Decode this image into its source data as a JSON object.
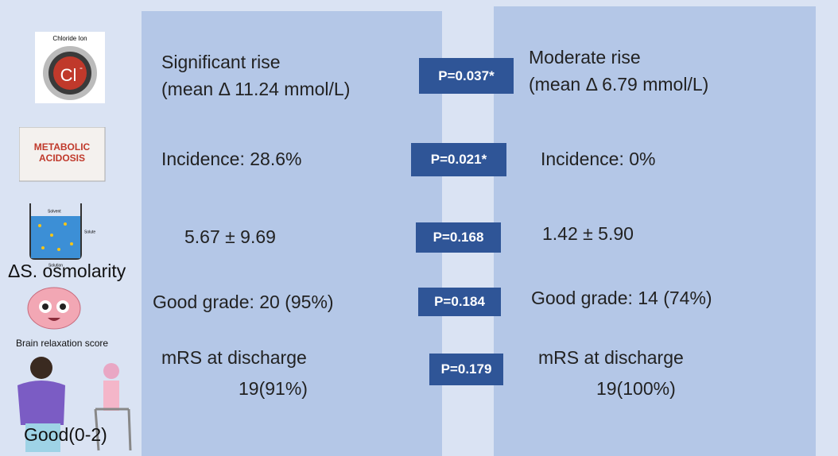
{
  "icons": {
    "chloride": {
      "caption": "Chloride Ion",
      "symbol": "Cl",
      "charge": "-"
    },
    "acidosis": {
      "line1": "METABOLIC",
      "line2": "ACIDOSIS"
    },
    "beaker": {
      "solvent": "Solvent",
      "solute": "Solute",
      "solution": "Solution"
    }
  },
  "rows": [
    {
      "left": [
        "Significant rise",
        "(mean Δ 11.24 mmol/L)"
      ],
      "p": "P=0.037*",
      "right": [
        "Moderate rise",
        "(mean Δ 6.79 mmol/L)"
      ]
    },
    {
      "left": [
        "Incidence: 28.6%"
      ],
      "p": "P=0.021*",
      "right": [
        "Incidence: 0%"
      ]
    },
    {
      "label": "ΔS. osmolarity",
      "left": [
        "5.67 ± 9.69"
      ],
      "p": "P=0.168",
      "right": [
        "1.42 ± 5.90"
      ]
    },
    {
      "label": "Brain relaxation score",
      "left": [
        "Good grade: 20 (95%)"
      ],
      "p": "P=0.184",
      "right": [
        "Good grade: 14 (74%)"
      ]
    },
    {
      "label": "Good(0-2)",
      "left": [
        "mRS at discharge",
        "19(91%)"
      ],
      "p": "P=0.179",
      "right": [
        "mRS at discharge",
        "19(100%)"
      ]
    }
  ]
}
